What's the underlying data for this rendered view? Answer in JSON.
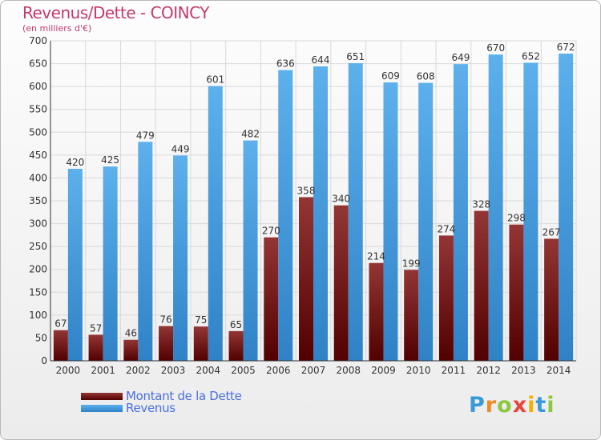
{
  "chart_data": {
    "type": "bar",
    "title": "Revenus/Dette - COINCY",
    "subtitle": "(en milliers d'€)",
    "categories": [
      "2000",
      "2001",
      "2002",
      "2003",
      "2004",
      "2005",
      "2006",
      "2007",
      "2008",
      "2009",
      "2010",
      "2011",
      "2012",
      "2013",
      "2014"
    ],
    "series": [
      {
        "name": "Montant de la Dette",
        "color": "#7a1e1e",
        "values": [
          67,
          57,
          46,
          76,
          75,
          65,
          270,
          358,
          340,
          214,
          199,
          274,
          328,
          298,
          267
        ]
      },
      {
        "name": "Revenus",
        "color": "#4fa3e0",
        "values": [
          420,
          425,
          479,
          449,
          601,
          482,
          636,
          644,
          651,
          609,
          608,
          649,
          670,
          652,
          672
        ]
      }
    ],
    "ylim": [
      0,
      700
    ],
    "yticks": [
      0,
      50,
      100,
      150,
      200,
      250,
      300,
      350,
      400,
      450,
      500,
      550,
      600,
      650,
      700
    ],
    "grid": true,
    "legend_position": "bottom-left"
  },
  "logo": {
    "text": "Proxiti"
  }
}
